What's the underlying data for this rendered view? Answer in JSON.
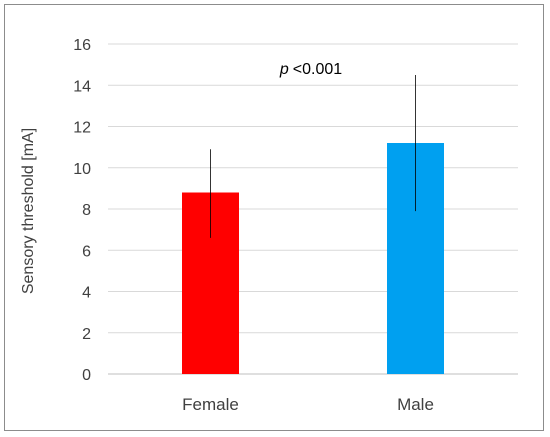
{
  "chart_data": {
    "type": "bar",
    "categories": [
      "Female",
      "Male"
    ],
    "values": [
      8.8,
      11.2
    ],
    "error_bars": {
      "upper": [
        10.9,
        14.5
      ],
      "lower": [
        6.6,
        7.9
      ]
    },
    "bar_colors": [
      "#ff0000",
      "#00a0f0"
    ],
    "ylabel": "Sensory threshold [mA]",
    "xlabel": "",
    "ylim": [
      0,
      16
    ],
    "yticks": [
      0,
      2,
      4,
      6,
      8,
      10,
      12,
      14,
      16
    ],
    "annotation": {
      "italic": "p",
      "text": "<0.001"
    },
    "grid": true,
    "legend": "none"
  }
}
